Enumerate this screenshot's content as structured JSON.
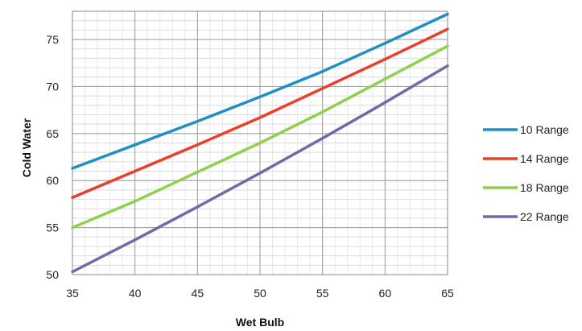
{
  "chart_data": {
    "type": "line",
    "xlabel": "Wet Bulb",
    "ylabel": "Cold Water",
    "xlim": [
      35,
      65
    ],
    "ylim": [
      50,
      78
    ],
    "x_ticks": [
      35,
      40,
      45,
      50,
      55,
      60,
      65
    ],
    "y_ticks": [
      50,
      55,
      60,
      65,
      70,
      75
    ],
    "grid": true,
    "legend_position": "right",
    "series": [
      {
        "name": "10 Range",
        "color": "#1f8fc4",
        "x": [
          35,
          40,
          45,
          50,
          55,
          60,
          65
        ],
        "y": [
          61.3,
          63.8,
          66.3,
          68.9,
          71.6,
          74.6,
          77.7
        ]
      },
      {
        "name": "14 Range",
        "color": "#e8402a",
        "x": [
          35,
          40,
          45,
          50,
          55,
          60,
          65
        ],
        "y": [
          58.2,
          61.0,
          63.8,
          66.7,
          69.8,
          72.9,
          76.1
        ]
      },
      {
        "name": "18 Range",
        "color": "#8fd14f",
        "x": [
          35,
          40,
          45,
          50,
          55,
          60,
          65
        ],
        "y": [
          55.0,
          57.8,
          60.9,
          64.0,
          67.3,
          70.8,
          74.3
        ]
      },
      {
        "name": "22 Range",
        "color": "#7468a8",
        "x": [
          35,
          40,
          45,
          50,
          55,
          60,
          65
        ],
        "y": [
          50.3,
          53.7,
          57.2,
          60.8,
          64.5,
          68.3,
          72.2
        ]
      }
    ]
  }
}
